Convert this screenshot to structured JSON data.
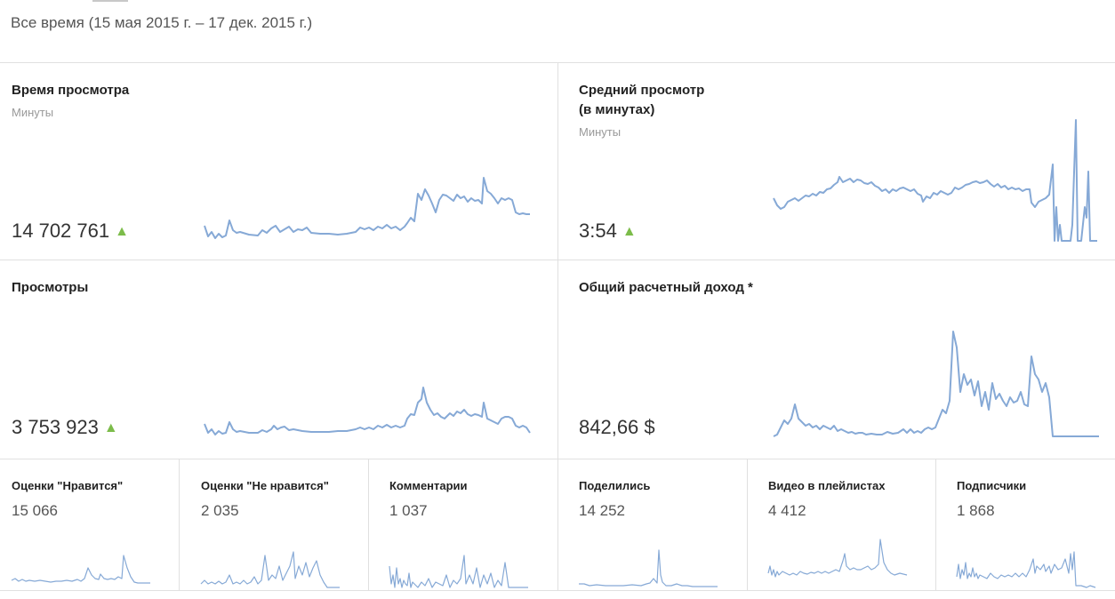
{
  "header": {
    "date_range": "Все время (15 мая 2015 г. – 17 дек. 2015 г.)"
  },
  "colors": {
    "line": "#86a9d6",
    "up_arrow": "#7cbc4a"
  },
  "metrics": {
    "watch_time": {
      "title": "Время просмотра",
      "unit": "Минуты",
      "value": "14 702 761",
      "trend": "▲"
    },
    "avg_view": {
      "title_line1": "Средний просмотр",
      "title_line2": "(в минутах)",
      "unit": "Минуты",
      "value": "3:54",
      "trend": "▲"
    },
    "views": {
      "title": "Просмотры",
      "value": "3 753 923",
      "trend": "▲"
    },
    "revenue": {
      "title": "Общий расчетный доход *",
      "value": "842,66 $"
    }
  },
  "small_metrics": [
    {
      "title": "Оценки \"Нравится\"",
      "value": "15 066"
    },
    {
      "title": "Оценки \"Не нравится\"",
      "value": "2 035"
    },
    {
      "title": "Комментарии",
      "value": "1 037"
    },
    {
      "title": "Поделились",
      "value": "14 252"
    },
    {
      "title": "Видео в плейлистах",
      "value": "4 412"
    },
    {
      "title": "Подписчики",
      "value": "1 868"
    }
  ]
}
